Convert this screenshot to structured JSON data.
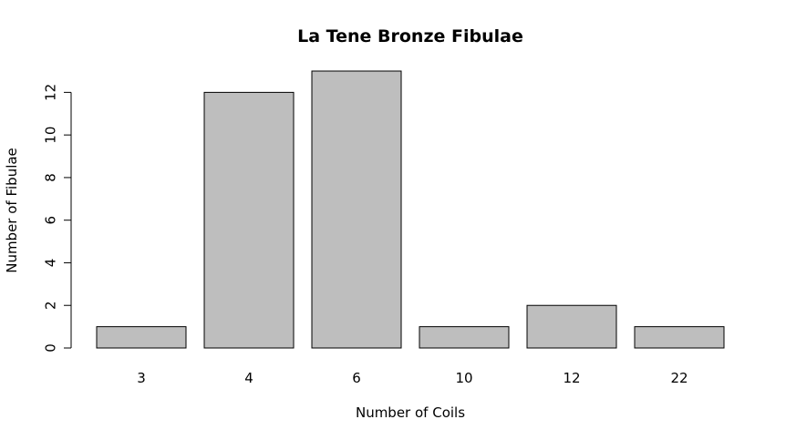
{
  "chart_data": {
    "type": "bar",
    "title": "La Tene Bronze Fibulae",
    "xlabel": "Number of Coils",
    "ylabel": "Number of Fibulae",
    "categories": [
      "3",
      "4",
      "6",
      "10",
      "12",
      "22"
    ],
    "values": [
      1,
      12,
      13,
      1,
      2,
      1
    ],
    "ylim": [
      0,
      13
    ],
    "yticks": [
      0,
      2,
      4,
      6,
      8,
      10,
      12
    ],
    "grid": false,
    "bar_color": "#bebebe",
    "border_color": "#000000"
  }
}
